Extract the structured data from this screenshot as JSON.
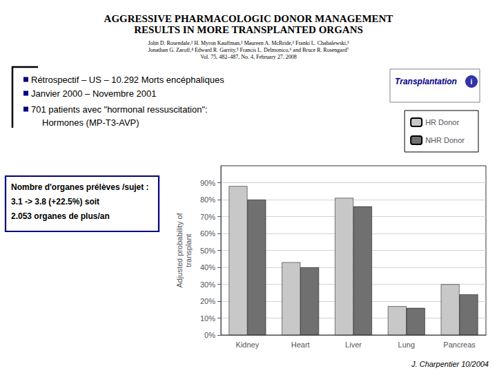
{
  "chart_data": {
    "type": "bar",
    "title": "AGGRESSIVE PHARMACOLOGIC DONOR MANAGEMENT\nRESULTS IN MORE TRANSPLANTED ORGANS",
    "subtitle": "John D. Rosendale,² H. Myron Kauffman,² Maureen A. McBride,² Franki L. Chabalewski,³\nJonathan G. Zaroff,⁴ Edward R. Garrity,⁵ Francis L. Delmonico,⁶ and Bruce R. Rosengard⁷\nVol. 75, 482–487, No. 4, February 27, 2008",
    "annotations": [
      "Rétrospectif – US – 10.292 Morts encéphaliques",
      "Janvier 2000 – Novembre 2001",
      "701 patients avec \"hormonal ressuscitation\":",
      "Hormones (MP-T3-AVP)",
      "Transplantation",
      "i",
      "Nombre d'organes prélèves /sujet :",
      "3.1 -> 3.8 (+22.5%) soit",
      "2.053 organes de plus/an",
      "J. Charpentier 10/2004"
    ],
    "categories": [
      "Kidney",
      "Heart",
      "Liver",
      "Lung",
      "Pancreas"
    ],
    "series": [
      {
        "name": "HR Donor",
        "color": "#c8c8c8",
        "values": [
          88,
          43,
          81,
          17,
          30
        ]
      },
      {
        "name": "NHR Donor",
        "color": "#707070",
        "values": [
          80,
          40,
          76,
          16,
          24
        ]
      }
    ],
    "ylabel": "Adjusted probability of\ntransplant",
    "ylim": [
      0,
      100
    ],
    "yticks": [
      {
        "value": 0,
        "label": "0%"
      },
      {
        "value": 10,
        "label": "10%"
      },
      {
        "value": 20,
        "label": "20%"
      },
      {
        "value": 30,
        "label": "30%"
      },
      {
        "value": 40,
        "label": "40%"
      },
      {
        "value": 50,
        "label": "50%"
      },
      {
        "value": 60,
        "label": "60%"
      },
      {
        "value": 70,
        "label": "70%"
      },
      {
        "value": 80,
        "label": "80%"
      },
      {
        "value": 90,
        "label": "90%"
      }
    ],
    "grid": true,
    "legend": "right"
  }
}
